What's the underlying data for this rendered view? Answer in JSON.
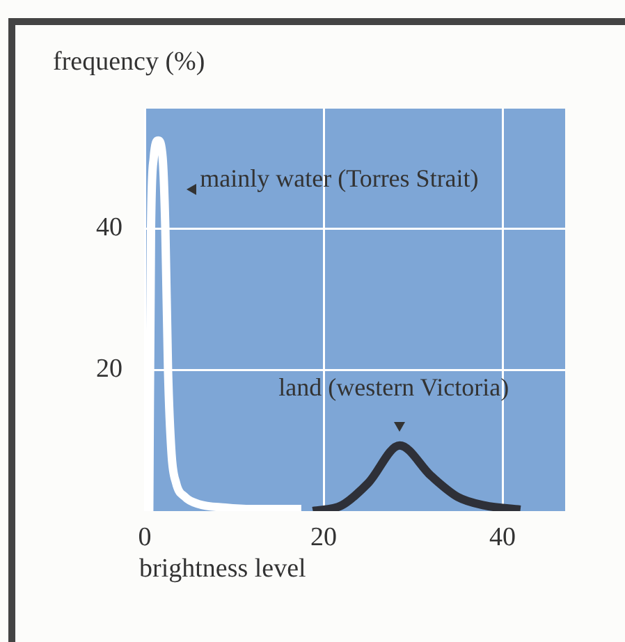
{
  "chart_data": {
    "type": "line",
    "xlabel": "brightness level",
    "ylabel": "frequency (%)",
    "xlim": [
      0,
      47
    ],
    "ylim": [
      0,
      57
    ],
    "xticks": [
      0,
      20,
      40
    ],
    "yticks": [
      20,
      40
    ],
    "grid": true,
    "legend": false,
    "marker": "none",
    "line_style": "solid",
    "annotations": [
      "mainly water (Torres Strait)",
      "land (western Victoria)"
    ],
    "series": [
      {
        "color": "#ffffff",
        "x": [
          0.5,
          0.7,
          1,
          1.5,
          2,
          2.3,
          2.6,
          3,
          3.5,
          4.5,
          6,
          9,
          12,
          17.5
        ],
        "values": [
          0,
          40,
          50,
          52.5,
          50,
          40,
          20,
          8,
          4,
          2,
          1,
          0.5,
          0.3,
          0.3
        ]
      },
      {
        "color": "#2e3038",
        "x": [
          18.8,
          22,
          25,
          28.5,
          32,
          35,
          38,
          42
        ],
        "values": [
          0,
          0.8,
          4,
          9.3,
          5,
          2,
          0.8,
          0.2
        ]
      }
    ]
  }
}
